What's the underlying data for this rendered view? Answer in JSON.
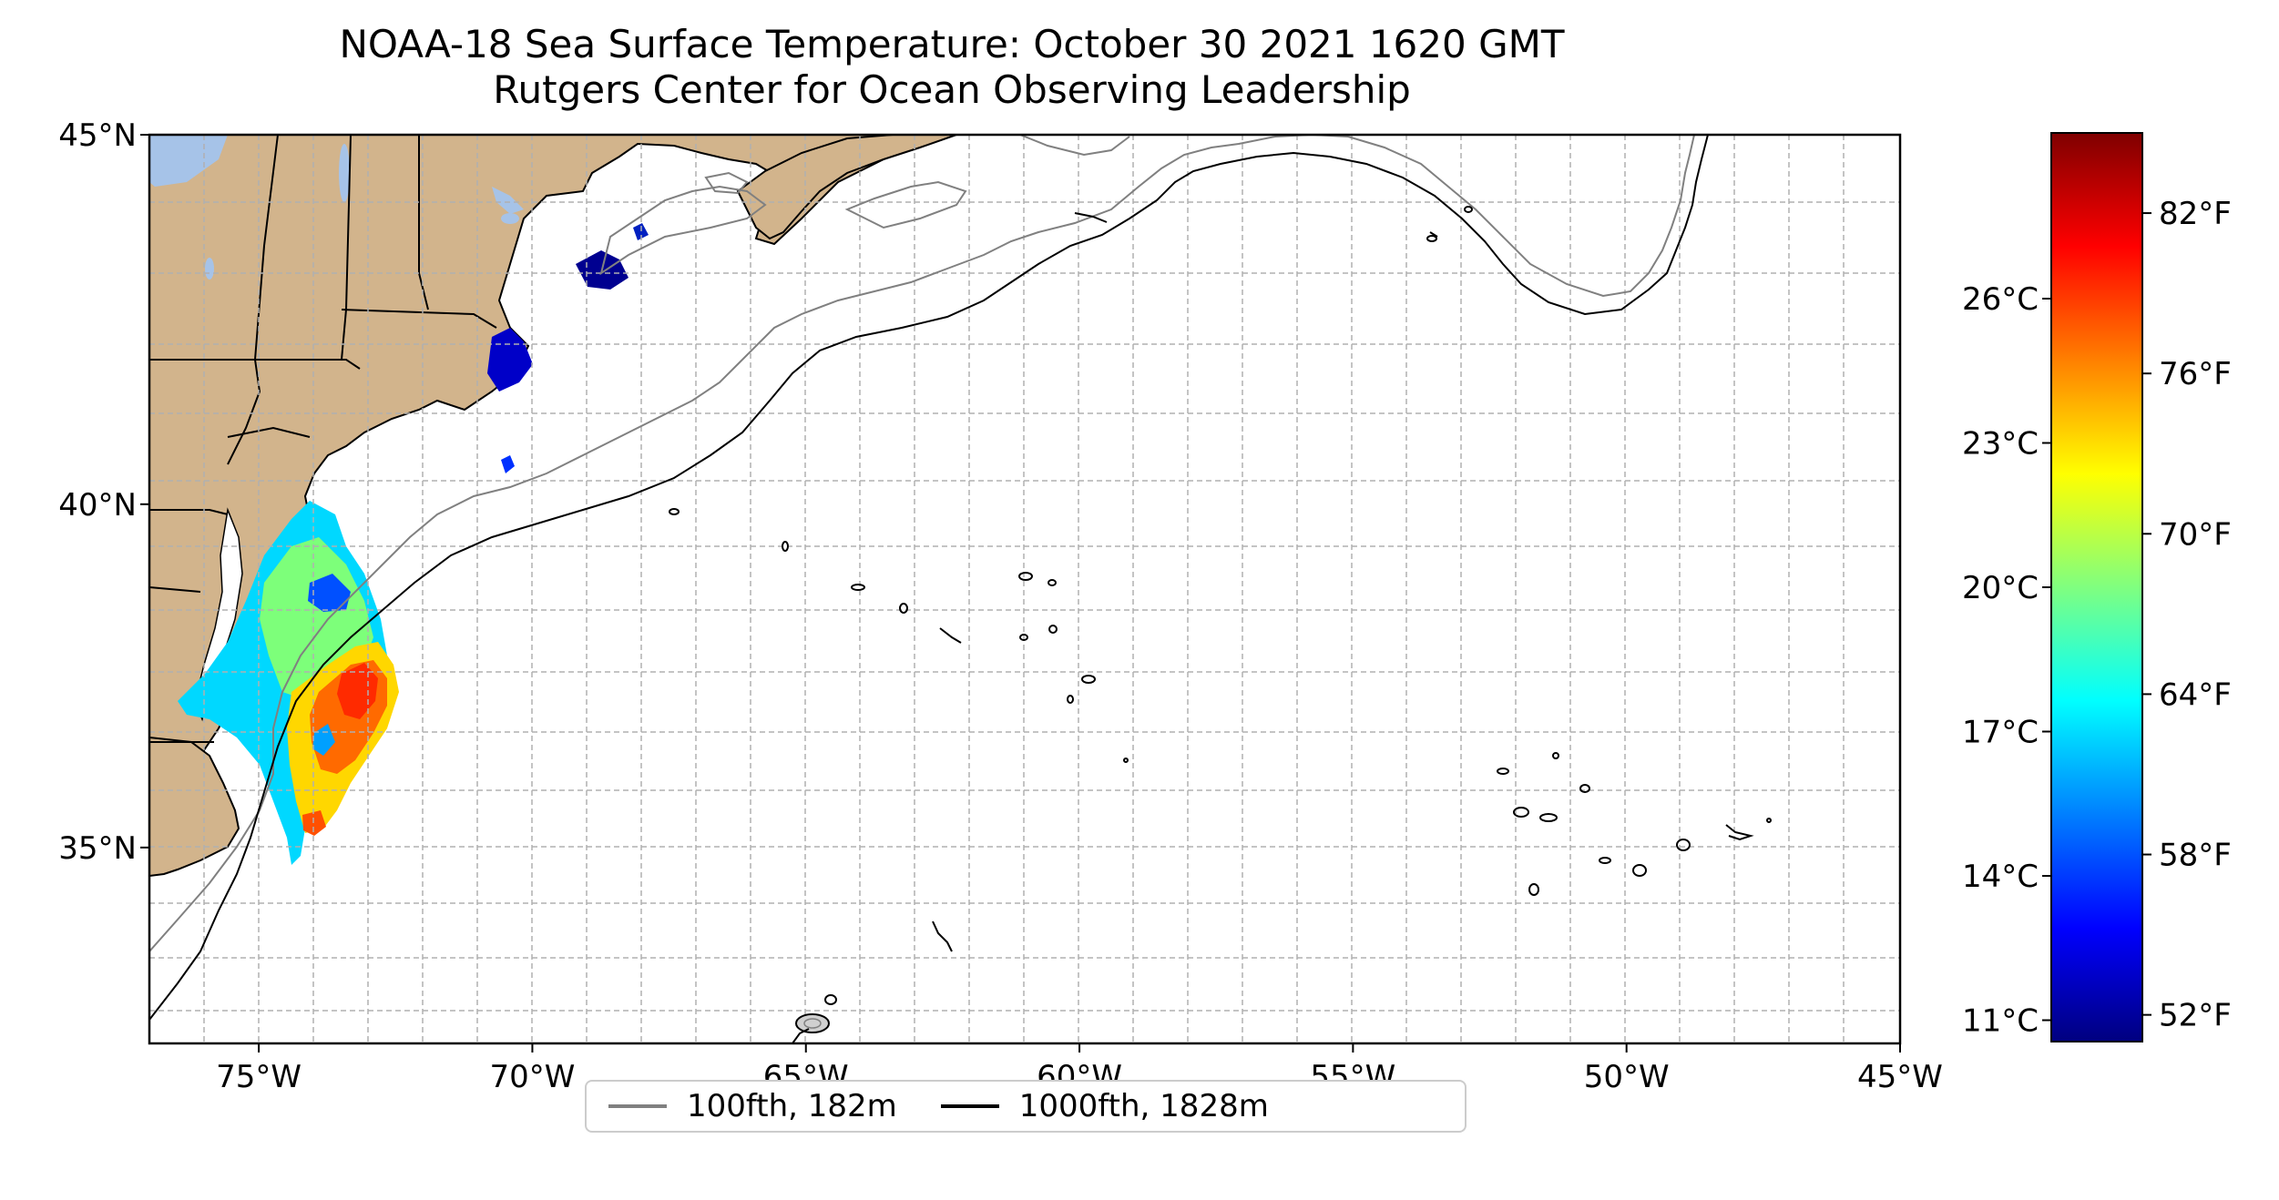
{
  "title_line1": "NOAA-18 Sea Surface Temperature: October 30 2021 1620 GMT",
  "title_line2": "Rutgers Center for Ocean Observing Leadership",
  "map": {
    "lon_range": [
      -77,
      -45
    ],
    "lat_range": [
      32,
      45
    ],
    "lon_ticks": [
      {
        "value": -75,
        "label": "75°W"
      },
      {
        "value": -70,
        "label": "70°W"
      },
      {
        "value": -65,
        "label": "65°W"
      },
      {
        "value": -60,
        "label": "60°W"
      },
      {
        "value": -55,
        "label": "55°W"
      },
      {
        "value": -50,
        "label": "50°W"
      },
      {
        "value": -45,
        "label": "45°W"
      }
    ],
    "lat_ticks": [
      {
        "value": 35,
        "label": "35°N"
      },
      {
        "value": 40,
        "label": "40°N"
      },
      {
        "value": 45,
        "label": "45°N"
      }
    ],
    "grid": true,
    "land_color": "#d2b48c",
    "lake_color": "#a6c3e8"
  },
  "colorbar": {
    "colormap": "jet",
    "celsius_ticks": [
      {
        "value": 11,
        "label": "11°C"
      },
      {
        "value": 14,
        "label": "14°C"
      },
      {
        "value": 17,
        "label": "17°C"
      },
      {
        "value": 20,
        "label": "20°C"
      },
      {
        "value": 23,
        "label": "23°C"
      },
      {
        "value": 26,
        "label": "26°C"
      }
    ],
    "fahrenheit_ticks": [
      {
        "value": 52,
        "label": "52°F"
      },
      {
        "value": 58,
        "label": "58°F"
      },
      {
        "value": 64,
        "label": "64°F"
      },
      {
        "value": 70,
        "label": "70°F"
      },
      {
        "value": 76,
        "label": "76°F"
      },
      {
        "value": 82,
        "label": "82°F"
      }
    ],
    "range_f": [
      51,
      85
    ]
  },
  "legend": [
    {
      "label": "100fth, 182m",
      "color": "#808080"
    },
    {
      "label": "1000fth, 1828m",
      "color": "#000000"
    }
  ]
}
